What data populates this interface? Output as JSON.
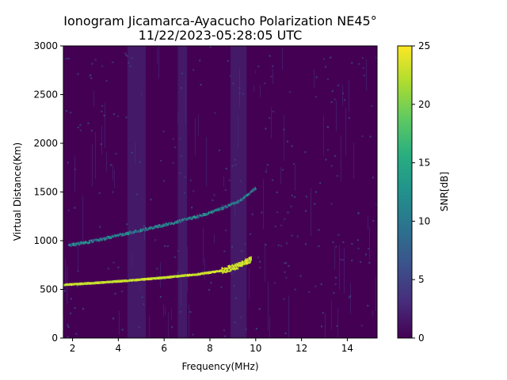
{
  "chart_data": {
    "type": "heatmap",
    "title": "Ionogram Jicamarca-Ayacucho Polarization NE45°",
    "subtitle": "11/22/2023-05:28:05 UTC",
    "xlabel": "Frequency(MHz)",
    "ylabel": "Virtual Distance(Km)",
    "xlim": [
      1.6,
      15.3
    ],
    "ylim": [
      0,
      3000
    ],
    "x_ticks": [
      2,
      4,
      6,
      8,
      10,
      12,
      14
    ],
    "y_ticks": [
      0,
      500,
      1000,
      1500,
      2000,
      2500,
      3000
    ],
    "colorbar": {
      "label": "SNR[dB]",
      "range": [
        0,
        25
      ],
      "ticks": [
        0,
        5,
        10,
        15,
        20,
        25
      ],
      "colormap": "viridis"
    },
    "background_snr_db": 1,
    "interference_bands_mhz": [
      [
        4.4,
        5.2
      ],
      [
        6.6,
        7.0
      ],
      [
        8.9,
        9.6
      ]
    ],
    "traces": [
      {
        "points": [
          {
            "freq_mhz": 1.6,
            "distance_km": 555
          },
          {
            "freq_mhz": 3.0,
            "distance_km": 575
          },
          {
            "freq_mhz": 4.5,
            "distance_km": 600
          },
          {
            "freq_mhz": 6.0,
            "distance_km": 630
          },
          {
            "freq_mhz": 7.5,
            "distance_km": 665
          },
          {
            "freq_mhz": 8.5,
            "distance_km": 700
          },
          {
            "freq_mhz": 9.2,
            "distance_km": 750
          },
          {
            "freq_mhz": 9.8,
            "distance_km": 820
          }
        ],
        "snr_db": 25
      },
      {
        "points": [
          {
            "freq_mhz": 1.8,
            "distance_km": 960
          },
          {
            "freq_mhz": 3.0,
            "distance_km": 1010
          },
          {
            "freq_mhz": 4.5,
            "distance_km": 1090
          },
          {
            "freq_mhz": 6.0,
            "distance_km": 1170
          },
          {
            "freq_mhz": 7.5,
            "distance_km": 1260
          },
          {
            "freq_mhz": 8.5,
            "distance_km": 1340
          },
          {
            "freq_mhz": 9.3,
            "distance_km": 1420
          },
          {
            "freq_mhz": 10.0,
            "distance_km": 1550
          }
        ],
        "snr_db": 15
      }
    ]
  }
}
